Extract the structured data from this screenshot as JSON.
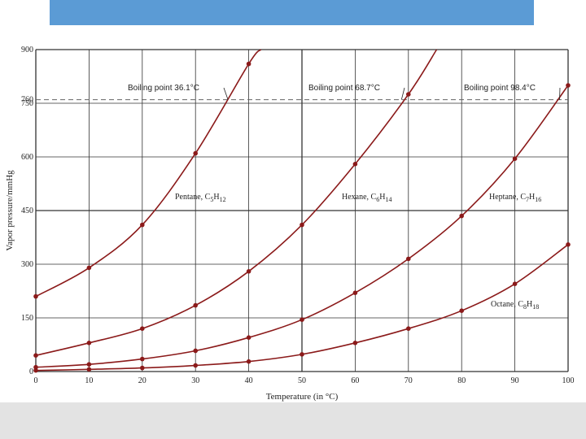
{
  "colors": {
    "title_bar": "#5b9bd5",
    "footer": "#e3e3e3",
    "curve": "#8b1a1a",
    "grid": "#333333",
    "dashed": "#666666"
  },
  "chart_data": {
    "type": "line",
    "xlabel": "Temperature (in °C)",
    "ylabel": "Vapor pressure/mmHg",
    "xlim": [
      0,
      100
    ],
    "ylim": [
      0,
      900
    ],
    "x_ticks": [
      0,
      10,
      20,
      30,
      40,
      50,
      60,
      70,
      80,
      90,
      100
    ],
    "y_ticks": [
      0,
      150,
      300,
      450,
      600,
      750,
      900
    ],
    "y_extra_tick": 760,
    "grid": true,
    "series": [
      {
        "name": "Pentane",
        "formula": {
          "pre": "Pentane, C",
          "n1": "5",
          "mid": "H",
          "n2": "12"
        },
        "x": [
          0,
          10,
          20,
          30,
          40,
          42.3
        ],
        "values": [
          210,
          290,
          410,
          610,
          860,
          900
        ],
        "markers": [
          0,
          10,
          20,
          30,
          40
        ]
      },
      {
        "name": "Hexane",
        "formula": {
          "pre": "Hexane, C",
          "n1": "6",
          "mid": "H",
          "n2": "14"
        },
        "x": [
          0,
          10,
          20,
          30,
          40,
          50,
          60,
          70,
          75.3
        ],
        "values": [
          45,
          80,
          120,
          185,
          280,
          410,
          580,
          775,
          900
        ],
        "markers": [
          0,
          10,
          20,
          30,
          40,
          50,
          60,
          70
        ]
      },
      {
        "name": "Heptane",
        "formula": {
          "pre": "Heptane, C",
          "n1": "7",
          "mid": "H",
          "n2": "16"
        },
        "x": [
          0,
          10,
          20,
          30,
          40,
          50,
          60,
          70,
          80,
          90,
          100
        ],
        "values": [
          12,
          20,
          35,
          58,
          95,
          145,
          220,
          315,
          435,
          595,
          800
        ],
        "markers": [
          0,
          10,
          20,
          30,
          40,
          50,
          60,
          70,
          80,
          90,
          100
        ]
      },
      {
        "name": "Octane",
        "formula": {
          "pre": "Octane, C",
          "n1": "8",
          "mid": "H",
          "n2": "18"
        },
        "x": [
          0,
          10,
          20,
          30,
          40,
          50,
          60,
          70,
          80,
          90,
          100
        ],
        "values": [
          3,
          6,
          10,
          17,
          28,
          48,
          80,
          120,
          170,
          245,
          355
        ],
        "markers": [
          0,
          10,
          20,
          30,
          40,
          50,
          60,
          70,
          80,
          90,
          100
        ]
      }
    ],
    "reference_line": {
      "y": 760,
      "style": "dashed"
    },
    "annotations": [
      {
        "text": "Boiling point 36.1°C",
        "x": 36.1,
        "y": 760
      },
      {
        "text": "Boiling point 68.7°C",
        "x": 68.7,
        "y": 760
      },
      {
        "text": "Boiling point 98.4°C",
        "x": 98.4,
        "y": 760
      }
    ]
  }
}
